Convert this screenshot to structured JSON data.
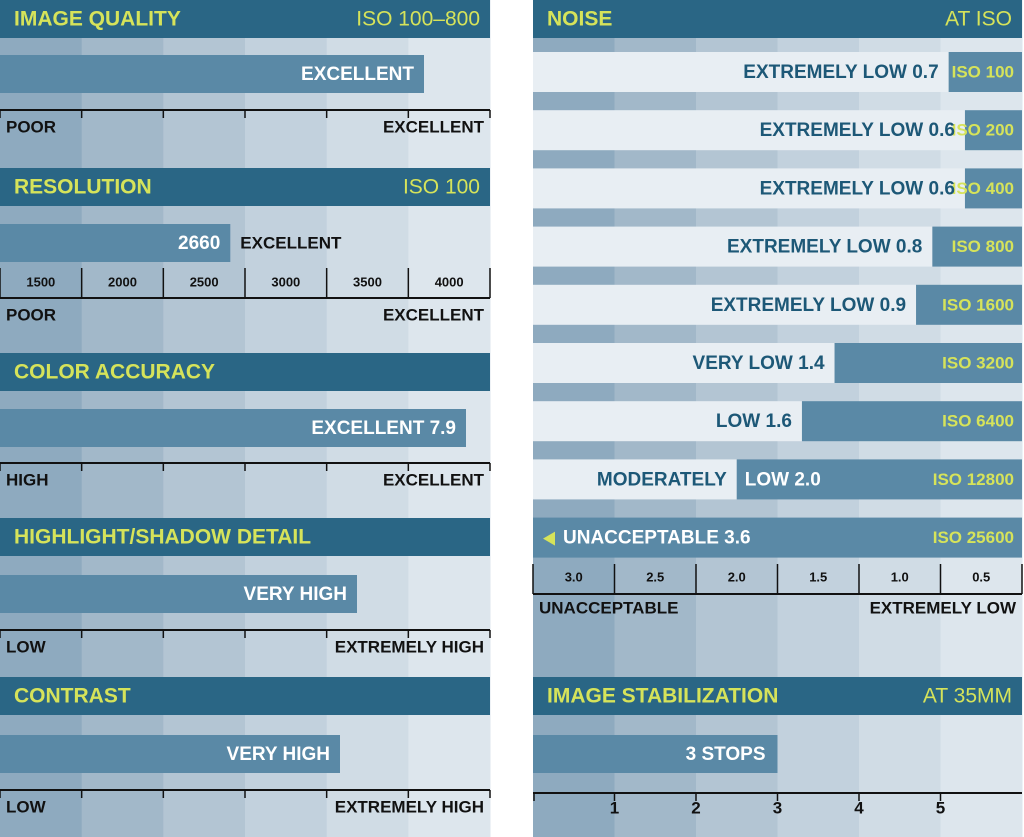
{
  "panels": {
    "image_quality": {
      "title": "IMAGE QUALITY",
      "subtitle": "ISO 100–800",
      "rating": "EXCELLENT",
      "scale": [
        "POOR",
        "EXCELLENT"
      ]
    },
    "resolution": {
      "title": "RESOLUTION",
      "subtitle": "ISO 100",
      "value": 2660,
      "rating": "EXCELLENT",
      "xlim": [
        1250,
        4250
      ],
      "xticks": [
        1500,
        2000,
        2500,
        3000,
        3500,
        4000
      ],
      "scale": [
        "POOR",
        "EXCELLENT"
      ]
    },
    "color_accuracy": {
      "title": "COLOR ACCURACY",
      "rating": "EXCELLENT",
      "value": 7.9,
      "scale": [
        "HIGH",
        "EXCELLENT"
      ]
    },
    "highlight_shadow": {
      "title": "HIGHLIGHT/SHADOW DETAIL",
      "rating": "VERY HIGH",
      "scale": [
        "LOW",
        "EXTREMELY HIGH"
      ]
    },
    "contrast": {
      "title": "CONTRAST",
      "rating": "VERY HIGH",
      "scale": [
        "LOW",
        "EXTREMELY HIGH"
      ]
    },
    "noise": {
      "title": "NOISE",
      "subtitle": "AT ISO",
      "rows": [
        {
          "rating": "EXTREMELY LOW",
          "value": 0.7,
          "iso": "ISO 100"
        },
        {
          "rating": "EXTREMELY LOW",
          "value": 0.6,
          "iso": "ISO 200"
        },
        {
          "rating": "EXTREMELY LOW",
          "value": 0.6,
          "iso": "ISO 400"
        },
        {
          "rating": "EXTREMELY LOW",
          "value": 0.8,
          "iso": "ISO 800"
        },
        {
          "rating": "EXTREMELY LOW",
          "value": 0.9,
          "iso": "ISO 1600"
        },
        {
          "rating": "VERY LOW",
          "value": 1.4,
          "iso": "ISO 3200"
        },
        {
          "rating": "LOW",
          "value": 1.6,
          "iso": "ISO 6400"
        },
        {
          "rating": [
            "MODERATELY",
            "LOW"
          ],
          "value": 2,
          "value_label": "2.0",
          "iso": "ISO 12800"
        },
        {
          "rating": "UNACCEPTABLE",
          "value": 3.6,
          "iso": "ISO 25600"
        }
      ],
      "xlim": [
        3.25,
        0.25
      ],
      "xticks": [
        {
          "value": 3,
          "label": "3.0"
        },
        2.5,
        {
          "value": 2,
          "label": "2.0"
        },
        1.5,
        {
          "value": 1,
          "label": "1.0"
        },
        0.5
      ],
      "scale": [
        "UNACCEPTABLE",
        "EXTREMELY LOW"
      ]
    },
    "stabilization": {
      "title": "IMAGE STABILIZATION",
      "subtitle": "AT 35MM",
      "value": 3,
      "value_label": "3 STOPS",
      "xlim": [
        0,
        6
      ],
      "xticks": [
        1,
        2,
        3,
        4,
        5
      ]
    }
  }
}
